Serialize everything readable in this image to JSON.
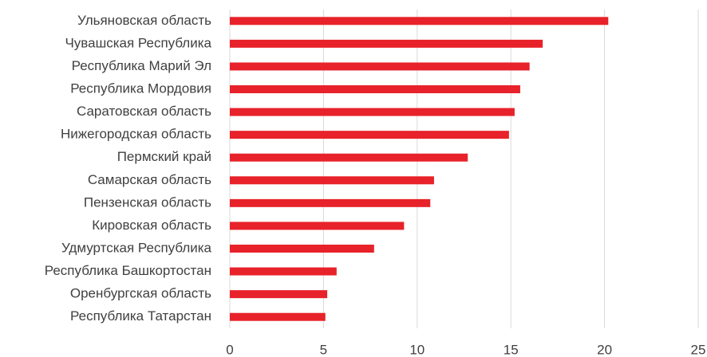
{
  "chart_data": {
    "type": "hbar",
    "categories": [
      "Ульяновская область",
      "Чувашская Республика",
      "Республика Марий Эл",
      "Республика Мордовия",
      "Саратовская область",
      "Нижегородская область",
      "Пермский край",
      "Самарская область",
      "Пензенская область",
      "Кировская область",
      "Удмуртская Республика",
      "Республика Башкортостан",
      "Оренбургская область",
      "Республика Татарстан"
    ],
    "values": [
      20.2,
      16.7,
      16.0,
      15.5,
      15.2,
      14.9,
      12.7,
      10.9,
      10.7,
      9.3,
      7.7,
      5.7,
      5.2,
      5.1
    ],
    "color": "#e8222a",
    "xlim": [
      0,
      25
    ],
    "xticks": [
      0,
      5,
      10,
      15,
      20,
      25
    ],
    "grid": true
  }
}
